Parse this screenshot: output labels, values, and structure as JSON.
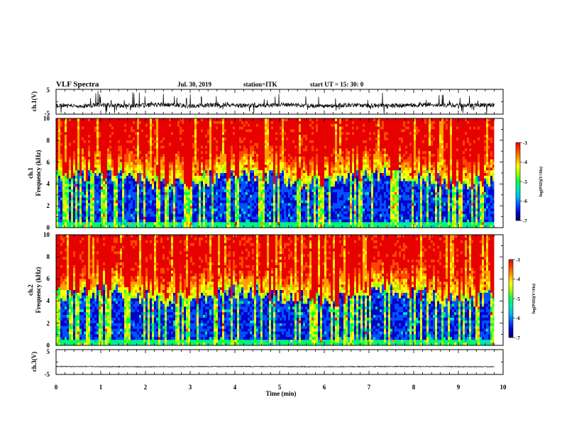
{
  "header": {
    "title": "VLF Spectra",
    "date": "Jul. 30, 2019",
    "station": "station=ITK",
    "start": "start UT =  15: 30: 0"
  },
  "colors": {
    "cmap": [
      "#000060",
      "#0000c8",
      "#0050ff",
      "#00b4ff",
      "#00e6b4",
      "#00ff50",
      "#a0ff00",
      "#ffff00",
      "#ffa000",
      "#ff4600",
      "#e60000"
    ],
    "trace": "#000000"
  },
  "chart_data": [
    {
      "type": "line",
      "name": "waveform-ch1",
      "ylabel": "ch.1(V)",
      "ylim": [
        -5,
        5
      ],
      "yticks": [
        "5",
        "-5"
      ],
      "xlim": [
        0,
        10
      ],
      "x": [
        0.0,
        0.5,
        1.0,
        1.5,
        2.0,
        2.5,
        3.0,
        3.5,
        4.0,
        4.5,
        5.0,
        5.5,
        6.0,
        6.5,
        7.0,
        7.5,
        8.0,
        8.5,
        9.0,
        9.5,
        9.8
      ],
      "values": [
        -1.5,
        -1.8,
        -1.2,
        -1.6,
        -1.4,
        -1.1,
        -1.7,
        -1.3,
        -1.5,
        -1.6,
        -1.2,
        -1.4,
        -1.8,
        -1.3,
        -1.5,
        -1.6,
        -1.4,
        -1.2,
        -1.5,
        -1.3,
        -1.4
      ]
    },
    {
      "type": "heatmap",
      "name": "spectrogram-ch1",
      "ylabel_top": "ch.1",
      "ylabel": "Frequency (kHz)",
      "ylim": [
        0,
        10
      ],
      "yticks": [
        "0",
        "2",
        "4",
        "6",
        "8",
        "10"
      ],
      "xlim": [
        0,
        10
      ],
      "data_end_min": 9.8,
      "colorbar": {
        "label": "log(PSD)(V²/Hz)",
        "range": [
          -7,
          -3
        ],
        "ticks": [
          "-3",
          "-4",
          "-5",
          "-6",
          "-7"
        ]
      }
    },
    {
      "type": "heatmap",
      "name": "spectrogram-ch2",
      "ylabel_top": "ch.2",
      "ylabel": "Frequency (kHz)",
      "ylim": [
        0,
        10
      ],
      "yticks": [
        "0",
        "2",
        "4",
        "6",
        "8",
        "10"
      ],
      "xlim": [
        0,
        10
      ],
      "data_end_min": 9.8,
      "colorbar": {
        "label": "log(PSD)(V²/Hz)",
        "range": [
          -7,
          -3
        ],
        "ticks": [
          "-3",
          "-4",
          "-5",
          "-6",
          "-7"
        ]
      }
    },
    {
      "type": "line",
      "name": "waveform-ch3",
      "ylabel": "ch.3(V)",
      "ylim": [
        -5,
        5
      ],
      "yticks": [
        "5",
        "-5"
      ],
      "xlim": [
        0,
        10
      ],
      "x": [
        0.0,
        2.0,
        4.0,
        6.0,
        8.0,
        9.8
      ],
      "values": [
        -1.8,
        -1.9,
        -1.8,
        -1.9,
        -1.8,
        -1.9
      ]
    }
  ],
  "xaxis": {
    "label": "Time (min)",
    "ticks": [
      "0",
      "1",
      "2",
      "3",
      "4",
      "5",
      "6",
      "7",
      "8",
      "9",
      "10"
    ]
  }
}
